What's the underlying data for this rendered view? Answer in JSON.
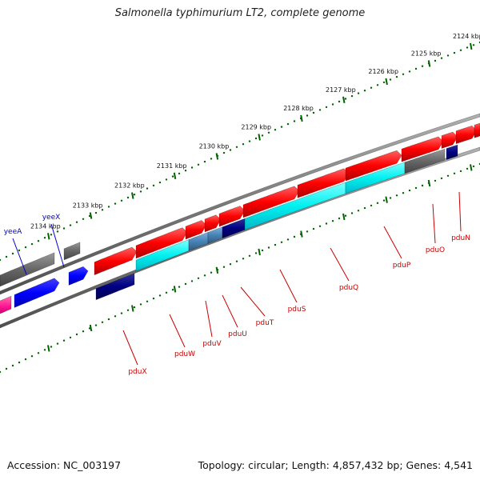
{
  "title": "Salmonella typhimurium LT2, complete genome",
  "footer": {
    "accession": "Accession: NC_003197",
    "summary": "Topology: circular; Length: 4,857,432 bp; Genes: 4,541"
  },
  "colors": {
    "backbone": "#7a7a7a",
    "forward_gene": "#ff0000",
    "reverse_gene": "#00ffff",
    "hypothetical": "#666666",
    "dark_blue": "#000080",
    "blue": "#0000ff",
    "steel": "#4682b4",
    "magenta": "#ff1493",
    "tick": "#006400",
    "red_label": "#cc0000",
    "blue_label": "#0000cc"
  },
  "scale": {
    "ticks": [
      {
        "label": "2124 kbp",
        "frac": 0.02
      },
      {
        "label": "2125 kbp",
        "frac": 0.107
      },
      {
        "label": "2126 kbp",
        "frac": 0.196
      },
      {
        "label": "2127 kbp",
        "frac": 0.285
      },
      {
        "label": "2128 kbp",
        "frac": 0.373
      },
      {
        "label": "2129 kbp",
        "frac": 0.461
      },
      {
        "label": "2130 kbp",
        "frac": 0.549
      },
      {
        "label": "2131 kbp",
        "frac": 0.637
      },
      {
        "label": "2132 kbp",
        "frac": 0.725
      },
      {
        "label": "2133 kbp",
        "frac": 0.812
      },
      {
        "label": "2134 kbp",
        "frac": 0.9
      }
    ]
  },
  "genes": [
    {
      "name": "pduN",
      "label_color": "red"
    },
    {
      "name": "pduO",
      "label_color": "red"
    },
    {
      "name": "pduP",
      "label_color": "red"
    },
    {
      "name": "pduQ",
      "label_color": "red"
    },
    {
      "name": "pduS",
      "label_color": "red"
    },
    {
      "name": "pduT",
      "label_color": "red"
    },
    {
      "name": "pduU",
      "label_color": "red"
    },
    {
      "name": "pduV",
      "label_color": "red"
    },
    {
      "name": "pduW",
      "label_color": "red"
    },
    {
      "name": "pduX",
      "label_color": "red"
    },
    {
      "name": "yeeX",
      "label_color": "blue"
    },
    {
      "name": "yeeA",
      "label_color": "blue"
    }
  ]
}
